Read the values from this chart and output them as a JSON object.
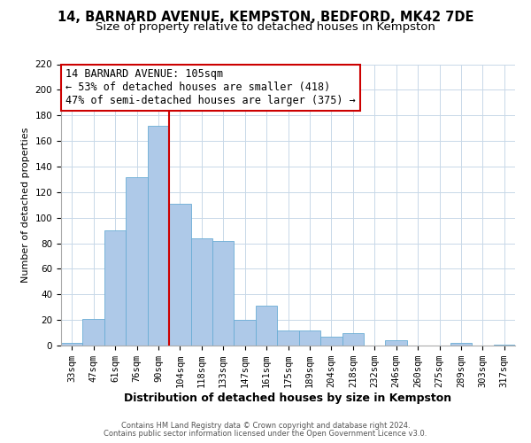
{
  "title": "14, BARNARD AVENUE, KEMPSTON, BEDFORD, MK42 7DE",
  "subtitle": "Size of property relative to detached houses in Kempston",
  "xlabel": "Distribution of detached houses by size in Kempston",
  "ylabel": "Number of detached properties",
  "bar_labels": [
    "33sqm",
    "47sqm",
    "61sqm",
    "76sqm",
    "90sqm",
    "104sqm",
    "118sqm",
    "133sqm",
    "147sqm",
    "161sqm",
    "175sqm",
    "189sqm",
    "204sqm",
    "218sqm",
    "232sqm",
    "246sqm",
    "260sqm",
    "275sqm",
    "289sqm",
    "303sqm",
    "317sqm"
  ],
  "bar_values": [
    2,
    21,
    90,
    132,
    172,
    111,
    84,
    82,
    20,
    31,
    12,
    12,
    7,
    10,
    0,
    4,
    0,
    0,
    2,
    0,
    1
  ],
  "bar_color": "#aec9e8",
  "bar_edge_color": "#6aadd5",
  "marker_line_color": "#cc0000",
  "marker_box_color": "#ffffff",
  "marker_box_edge_color": "#cc0000",
  "marker_label": "14 BARNARD AVENUE: 105sqm",
  "annotation_line1": "← 53% of detached houses are smaller (418)",
  "annotation_line2": "47% of semi-detached houses are larger (375) →",
  "footer1": "Contains HM Land Registry data © Crown copyright and database right 2024.",
  "footer2": "Contains public sector information licensed under the Open Government Licence v3.0.",
  "ylim": [
    0,
    220
  ],
  "yticks": [
    0,
    20,
    40,
    60,
    80,
    100,
    120,
    140,
    160,
    180,
    200,
    220
  ],
  "background_color": "#ffffff",
  "grid_color": "#c8d8e8",
  "title_fontsize": 10.5,
  "subtitle_fontsize": 9.5,
  "xlabel_fontsize": 9,
  "ylabel_fontsize": 8,
  "tick_fontsize": 7.5,
  "footer_fontsize": 6,
  "annotation_fontsize": 8.5
}
